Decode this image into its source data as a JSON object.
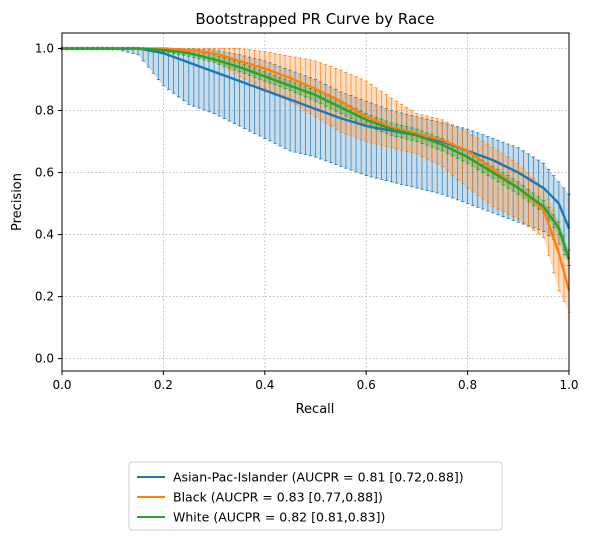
{
  "colors": {
    "asian": "#1f77b4",
    "black": "#ff7f0e",
    "white": "#2ca02c",
    "grid": "#b0b0b0"
  },
  "chart_data": {
    "type": "line",
    "title": "Bootstrapped PR Curve by Race",
    "xlabel": "Recall",
    "ylabel": "Precision",
    "xlim": [
      0.0,
      1.0
    ],
    "ylim": [
      -0.04,
      1.05
    ],
    "xticks": [
      "0.0",
      "0.2",
      "0.4",
      "0.6",
      "0.8",
      "1.0"
    ],
    "yticks": [
      "0.0",
      "0.2",
      "0.4",
      "0.6",
      "0.8",
      "1.0"
    ],
    "grid": true,
    "legend_position": "below-center",
    "series": [
      {
        "name": "Asian-Pac-Islander (AUCPR = 0.81 [0.72,0.88])",
        "color_key": "asian",
        "x": [
          0.0,
          0.1,
          0.15,
          0.2,
          0.25,
          0.3,
          0.35,
          0.4,
          0.45,
          0.5,
          0.55,
          0.6,
          0.65,
          0.7,
          0.75,
          0.8,
          0.85,
          0.9,
          0.95,
          0.98,
          1.0
        ],
        "y": [
          1.0,
          1.0,
          1.0,
          0.985,
          0.955,
          0.925,
          0.895,
          0.865,
          0.835,
          0.805,
          0.775,
          0.75,
          0.735,
          0.72,
          0.7,
          0.67,
          0.64,
          0.6,
          0.55,
          0.5,
          0.42
        ],
        "lower": [
          1.0,
          1.0,
          0.98,
          0.88,
          0.82,
          0.79,
          0.75,
          0.71,
          0.67,
          0.65,
          0.62,
          0.59,
          0.57,
          0.55,
          0.53,
          0.5,
          0.47,
          0.44,
          0.41,
          0.37,
          0.3
        ],
        "upper": [
          1.0,
          1.0,
          1.0,
          1.0,
          1.0,
          0.995,
          0.98,
          0.96,
          0.93,
          0.9,
          0.86,
          0.83,
          0.8,
          0.78,
          0.76,
          0.74,
          0.71,
          0.68,
          0.63,
          0.57,
          0.53
        ]
      },
      {
        "name": "Black (AUCPR = 0.83 [0.77,0.88])",
        "color_key": "black",
        "x": [
          0.0,
          0.1,
          0.15,
          0.2,
          0.25,
          0.3,
          0.35,
          0.4,
          0.45,
          0.5,
          0.55,
          0.6,
          0.65,
          0.7,
          0.75,
          0.8,
          0.85,
          0.9,
          0.95,
          0.98,
          1.0
        ],
        "y": [
          1.0,
          1.0,
          1.0,
          1.0,
          0.995,
          0.985,
          0.96,
          0.935,
          0.905,
          0.87,
          0.83,
          0.78,
          0.745,
          0.725,
          0.705,
          0.67,
          0.61,
          0.55,
          0.48,
          0.34,
          0.22
        ],
        "lower": [
          1.0,
          1.0,
          1.0,
          0.995,
          0.99,
          0.96,
          0.91,
          0.87,
          0.83,
          0.78,
          0.73,
          0.7,
          0.68,
          0.66,
          0.62,
          0.55,
          0.49,
          0.45,
          0.39,
          0.22,
          0.15
        ],
        "upper": [
          1.0,
          1.0,
          1.0,
          1.0,
          1.0,
          1.0,
          1.0,
          0.99,
          0.975,
          0.96,
          0.93,
          0.895,
          0.84,
          0.79,
          0.77,
          0.73,
          0.68,
          0.63,
          0.55,
          0.44,
          0.3
        ]
      },
      {
        "name": "White (AUCPR = 0.82 [0.81,0.83])",
        "color_key": "white",
        "x": [
          0.0,
          0.1,
          0.15,
          0.2,
          0.25,
          0.3,
          0.35,
          0.4,
          0.45,
          0.5,
          0.55,
          0.6,
          0.65,
          0.7,
          0.75,
          0.8,
          0.85,
          0.9,
          0.95,
          0.98,
          1.0
        ],
        "y": [
          1.0,
          1.0,
          1.0,
          0.995,
          0.985,
          0.965,
          0.94,
          0.91,
          0.88,
          0.85,
          0.81,
          0.77,
          0.74,
          0.72,
          0.69,
          0.65,
          0.6,
          0.55,
          0.49,
          0.42,
          0.32
        ],
        "lower": [
          1.0,
          1.0,
          1.0,
          0.99,
          0.975,
          0.955,
          0.925,
          0.895,
          0.865,
          0.83,
          0.79,
          0.75,
          0.72,
          0.7,
          0.67,
          0.63,
          0.58,
          0.53,
          0.47,
          0.4,
          0.3
        ],
        "upper": [
          1.0,
          1.0,
          1.0,
          1.0,
          0.995,
          0.98,
          0.955,
          0.925,
          0.895,
          0.865,
          0.83,
          0.79,
          0.76,
          0.74,
          0.71,
          0.67,
          0.62,
          0.57,
          0.51,
          0.44,
          0.35
        ]
      }
    ]
  }
}
